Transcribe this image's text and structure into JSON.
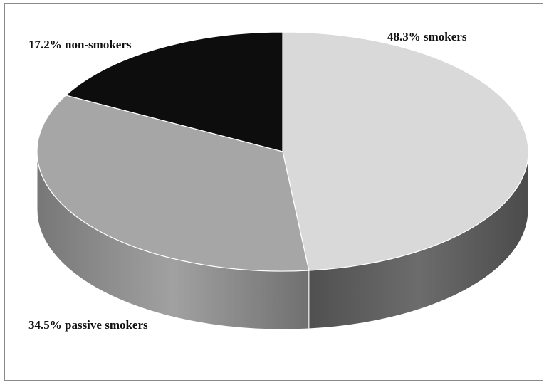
{
  "chart_data": {
    "type": "pie",
    "style": "3d",
    "slices": [
      {
        "label": "48.3% smokers",
        "value": 48.3,
        "color": "#d9d9d9",
        "side_color": "#5e5e5e"
      },
      {
        "label": "34.5% passive smokers",
        "value": 34.5,
        "color": "#a6a6a6",
        "side_color": "#8c8c8c"
      },
      {
        "label": "17.2% non-smokers",
        "value": 17.2,
        "color": "#0d0d0d",
        "side_color": "#000000"
      }
    ],
    "title": "",
    "legend": "none"
  }
}
